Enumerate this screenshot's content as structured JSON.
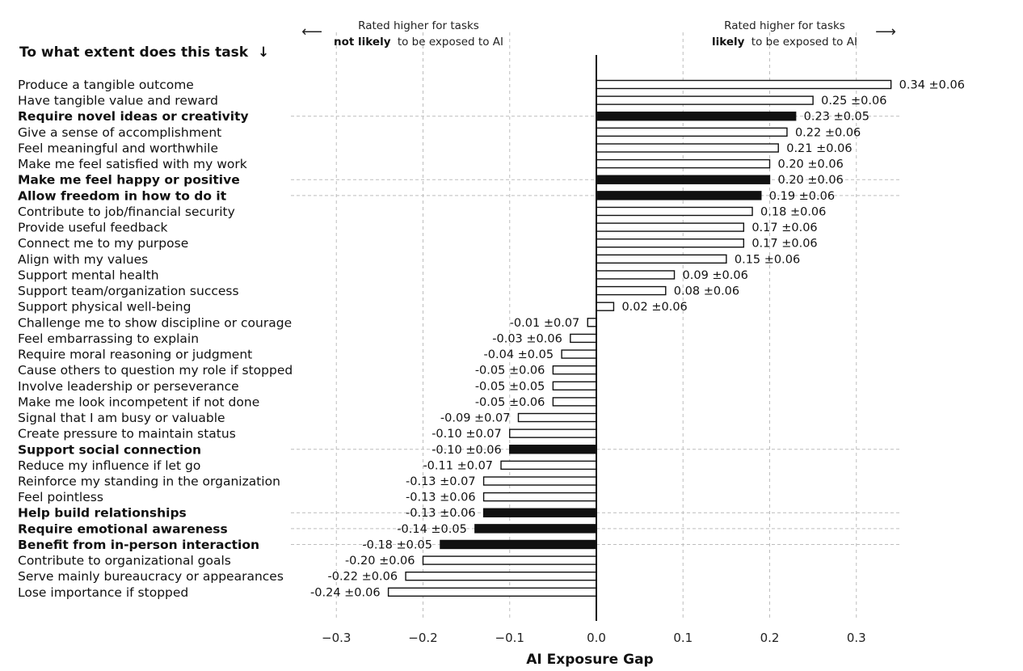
{
  "chart_data": {
    "type": "bar",
    "orientation": "horizontal",
    "question": "To what extent does this task",
    "question_arrow": "↓",
    "xlabel": "AI Exposure Gap",
    "xlim": [
      -0.35,
      0.35
    ],
    "xticks": [
      -0.3,
      -0.2,
      -0.1,
      0.0,
      0.1,
      0.2,
      0.3
    ],
    "xtick_labels": [
      "−0.3",
      "−0.2",
      "−0.1",
      "0.0",
      "0.1",
      "0.2",
      "0.3"
    ],
    "grid": "vertical dashed",
    "annotation_left": {
      "line1": "Rated higher for tasks",
      "bold": "not likely",
      "rest": "to be exposed to AI",
      "arrow": "⟵"
    },
    "annotation_right": {
      "line1": "Rated higher for tasks",
      "bold": "likely",
      "rest": "to be exposed to AI",
      "arrow": "⟶"
    },
    "bars": [
      {
        "label": "Produce a tangible outcome",
        "value": 0.34,
        "display": "0.34 ±0.06",
        "highlight": false
      },
      {
        "label": "Have tangible value and reward",
        "value": 0.25,
        "display": "0.25 ±0.06",
        "highlight": false
      },
      {
        "label": "Require novel ideas or creativity",
        "value": 0.23,
        "display": "0.23 ±0.05",
        "highlight": true
      },
      {
        "label": "Give a sense of accomplishment",
        "value": 0.22,
        "display": "0.22 ±0.06",
        "highlight": false
      },
      {
        "label": "Feel meaningful and worthwhile",
        "value": 0.21,
        "display": "0.21 ±0.06",
        "highlight": false
      },
      {
        "label": "Make me feel satisfied with my work",
        "value": 0.2,
        "display": "0.20 ±0.06",
        "highlight": false
      },
      {
        "label": "Make me feel happy or positive",
        "value": 0.2,
        "display": "0.20 ±0.06",
        "highlight": true
      },
      {
        "label": "Allow freedom in how to do it",
        "value": 0.19,
        "display": "0.19 ±0.06",
        "highlight": true
      },
      {
        "label": "Contribute to job/financial security",
        "value": 0.18,
        "display": "0.18 ±0.06",
        "highlight": false
      },
      {
        "label": "Provide useful feedback",
        "value": 0.17,
        "display": "0.17 ±0.06",
        "highlight": false
      },
      {
        "label": "Connect me to my purpose",
        "value": 0.17,
        "display": "0.17 ±0.06",
        "highlight": false
      },
      {
        "label": "Align with my values",
        "value": 0.15,
        "display": "0.15 ±0.06",
        "highlight": false
      },
      {
        "label": "Support mental health",
        "value": 0.09,
        "display": "0.09 ±0.06",
        "highlight": false
      },
      {
        "label": "Support team/organization success",
        "value": 0.08,
        "display": "0.08 ±0.06",
        "highlight": false
      },
      {
        "label": "Support physical well-being",
        "value": 0.02,
        "display": "0.02 ±0.06",
        "highlight": false
      },
      {
        "label": "Challenge me to show discipline or courage",
        "value": -0.01,
        "display": "-0.01 ±0.07",
        "highlight": false
      },
      {
        "label": "Feel embarrassing to explain",
        "value": -0.03,
        "display": "-0.03 ±0.06",
        "highlight": false
      },
      {
        "label": "Require moral reasoning or judgment",
        "value": -0.04,
        "display": "-0.04 ±0.05",
        "highlight": false
      },
      {
        "label": "Cause others to question my role if stopped",
        "value": -0.05,
        "display": "-0.05 ±0.06",
        "highlight": false
      },
      {
        "label": "Involve leadership or perseverance",
        "value": -0.05,
        "display": "-0.05 ±0.05",
        "highlight": false
      },
      {
        "label": "Make me look incompetent if not done",
        "value": -0.05,
        "display": "-0.05 ±0.06",
        "highlight": false
      },
      {
        "label": "Signal that I am busy or valuable",
        "value": -0.09,
        "display": "-0.09 ±0.07",
        "highlight": false
      },
      {
        "label": "Create pressure to maintain status",
        "value": -0.1,
        "display": "-0.10 ±0.07",
        "highlight": false
      },
      {
        "label": "Support social connection",
        "value": -0.1,
        "display": "-0.10 ±0.06",
        "highlight": true
      },
      {
        "label": "Reduce my influence if let go",
        "value": -0.11,
        "display": "-0.11 ±0.07",
        "highlight": false
      },
      {
        "label": "Reinforce my standing in the organization",
        "value": -0.13,
        "display": "-0.13 ±0.07",
        "highlight": false
      },
      {
        "label": "Feel pointless",
        "value": -0.13,
        "display": "-0.13 ±0.06",
        "highlight": false
      },
      {
        "label": "Help build relationships",
        "value": -0.13,
        "display": "-0.13 ±0.06",
        "highlight": true
      },
      {
        "label": "Require emotional awareness",
        "value": -0.14,
        "display": "-0.14 ±0.05",
        "highlight": true
      },
      {
        "label": "Benefit from in-person interaction",
        "value": -0.18,
        "display": "-0.18 ±0.05",
        "highlight": true
      },
      {
        "label": "Contribute to organizational goals",
        "value": -0.2,
        "display": "-0.20 ±0.06",
        "highlight": false
      },
      {
        "label": "Serve mainly bureaucracy or appearances",
        "value": -0.22,
        "display": "-0.22 ±0.06",
        "highlight": false
      },
      {
        "label": "Lose importance if stopped",
        "value": -0.24,
        "display": "-0.24 ±0.06",
        "highlight": false
      }
    ],
    "colors": {
      "highlight_fill": "#111111",
      "normal_fill": "#ffffff",
      "stroke": "#111111",
      "grid": "#bdbdbd"
    }
  }
}
